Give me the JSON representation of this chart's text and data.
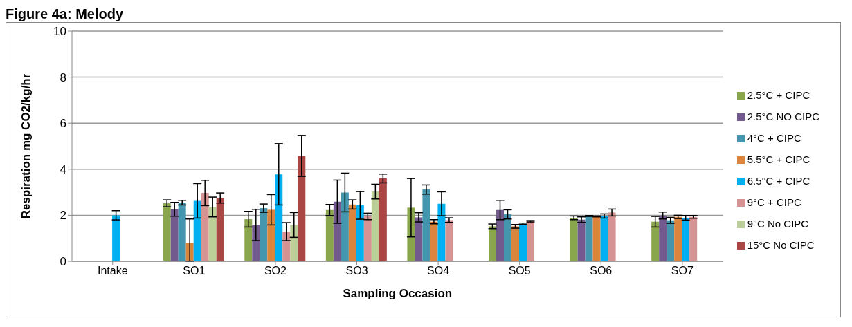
{
  "chart_data": {
    "type": "bar",
    "title": "Figure 4a: Melody",
    "xlabel": "Sampling Occasion",
    "ylabel": "Respiration mg CO2/kg/hr",
    "categories": [
      "Intake",
      "SO1",
      "SO2",
      "SO3",
      "SO4",
      "SO5",
      "SO6",
      "SO7"
    ],
    "ylim": [
      0,
      10
    ],
    "yticks": [
      0,
      2,
      4,
      6,
      8,
      10
    ],
    "grid": "y",
    "legend": "right",
    "series": [
      {
        "name": "2.5°C + CIPC",
        "color": "#8aa64c",
        "values": [
          0,
          2.52,
          1.83,
          2.23,
          2.33,
          1.52,
          1.89,
          1.72
        ],
        "errors": [
          null,
          0.15,
          0.34,
          0.24,
          1.27,
          0.1,
          0.08,
          0.23
        ]
      },
      {
        "name": "2.5°C NO CIPC",
        "color": "#725a8f",
        "values": [
          0,
          2.26,
          1.58,
          2.59,
          1.91,
          2.23,
          1.81,
          1.99
        ],
        "errors": [
          null,
          0.3,
          0.68,
          0.94,
          0.2,
          0.42,
          0.12,
          0.15
        ]
      },
      {
        "name": "4°C + CIPC",
        "color": "#4396ae",
        "values": [
          0,
          2.55,
          2.31,
          2.99,
          3.12,
          2.04,
          1.97,
          1.78
        ],
        "errors": [
          null,
          0.1,
          0.18,
          0.84,
          0.2,
          0.2,
          0.02,
          0.13
        ]
      },
      {
        "name": "5.5°C + CIPC",
        "color": "#db843d",
        "values": [
          0,
          0.78,
          2.24,
          2.47,
          1.72,
          1.52,
          1.95,
          1.93
        ],
        "errors": [
          null,
          [
            0,
            1.84
          ],
          0.66,
          0.2,
          0.09,
          0.08,
          0.02,
          0.07
        ]
      },
      {
        "name": "6.5°C + CIPC",
        "color": "#00b0f0",
        "values": [
          2.0,
          2.63,
          3.78,
          2.43,
          2.5,
          1.63,
          1.97,
          1.89
        ],
        "errors": [
          0.2,
          0.75,
          1.33,
          0.6,
          0.52,
          0.03,
          0.09,
          0.1
        ]
      },
      {
        "name": "9°C + CIPC",
        "color": "#d59393",
        "values": [
          0,
          2.97,
          1.29,
          1.95,
          1.79,
          1.74,
          2.12,
          1.93
        ],
        "errors": [
          null,
          0.55,
          0.39,
          0.14,
          0.1,
          0.03,
          0.15,
          0.06
        ]
      },
      {
        "name": "9°C No CIPC",
        "color": "#bccf99",
        "values": [
          0,
          2.36,
          1.58,
          3.03,
          null,
          null,
          null,
          null
        ],
        "errors": [
          null,
          0.43,
          0.54,
          0.32,
          null,
          null,
          null,
          null
        ]
      },
      {
        "name": "15°C No CIPC",
        "color": "#aa4644",
        "values": [
          0,
          2.75,
          4.58,
          3.6,
          null,
          null,
          null,
          null
        ],
        "errors": [
          null,
          0.22,
          0.89,
          0.19,
          null,
          null,
          null,
          null
        ]
      }
    ]
  }
}
